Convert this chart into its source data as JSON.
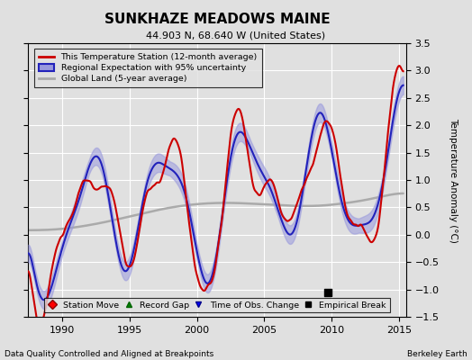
{
  "title": "SUNKHAZE MEADOWS MAINE",
  "subtitle": "44.903 N, 68.640 W (United States)",
  "ylabel": "Temperature Anomaly (°C)",
  "xlabel_left": "Data Quality Controlled and Aligned at Breakpoints",
  "xlabel_right": "Berkeley Earth",
  "ylim": [
    -1.5,
    3.5
  ],
  "xlim": [
    1987.5,
    2015.5
  ],
  "xticks": [
    1990,
    1995,
    2000,
    2005,
    2010,
    2015
  ],
  "yticks": [
    -1.5,
    -1.0,
    -0.5,
    0.0,
    0.5,
    1.0,
    1.5,
    2.0,
    2.5,
    3.0,
    3.5
  ],
  "bg_color": "#e0e0e0",
  "plot_bg_color": "#e0e0e0",
  "station_color": "#cc0000",
  "regional_color": "#2222bb",
  "regional_fill_color": "#9999dd",
  "global_color": "#aaaaaa",
  "legend_items": [
    {
      "label": "This Temperature Station (12-month average)",
      "color": "#cc0000"
    },
    {
      "label": "Regional Expectation with 95% uncertainty",
      "color": "#2222bb"
    },
    {
      "label": "Global Land (5-year average)",
      "color": "#aaaaaa"
    }
  ],
  "scatter_items": [
    {
      "label": "Station Move",
      "marker": "D",
      "color": "red"
    },
    {
      "label": "Record Gap",
      "marker": "^",
      "color": "green"
    },
    {
      "label": "Time of Obs. Change",
      "marker": "v",
      "color": "blue"
    },
    {
      "label": "Empirical Break",
      "marker": "s",
      "color": "black"
    }
  ],
  "empirical_break_x": 2009.7,
  "empirical_break_y": -1.05
}
